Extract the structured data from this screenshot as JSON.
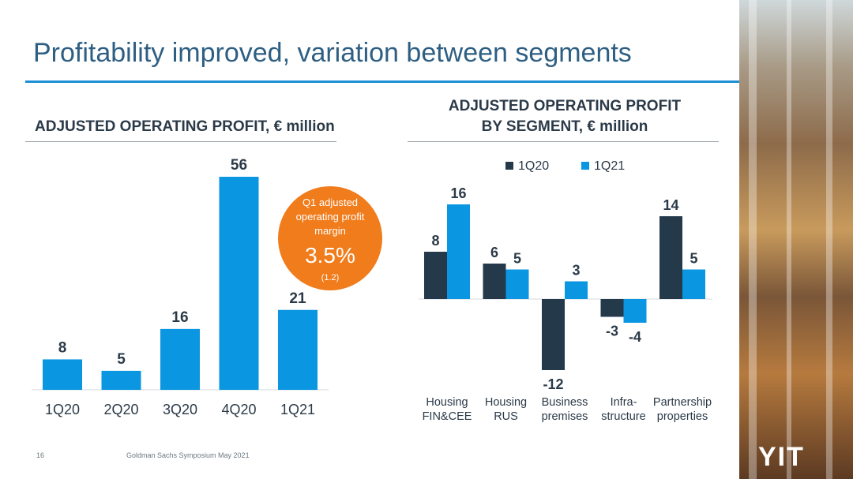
{
  "slide": {
    "title": "Profitability improved, variation between segments",
    "footer_page": "16",
    "footer_text": "Goldman Sachs Symposium May 2021",
    "logo": "YIT"
  },
  "colors": {
    "primary": "#0a96e0",
    "dark": "#243a4a",
    "accent": "#f07c1c",
    "title": "#2e5f83"
  },
  "badge": {
    "caption_line1": "Q1 adjusted",
    "caption_line2": "operating profit",
    "caption_line3": "margin",
    "value": "3.5%",
    "prior": "(1.2)"
  },
  "chart_data": [
    {
      "type": "bar",
      "title": "ADJUSTED OPERATING PROFIT, € million",
      "categories": [
        "1Q20",
        "2Q20",
        "3Q20",
        "4Q20",
        "1Q21"
      ],
      "values": [
        8,
        5,
        16,
        56,
        21
      ],
      "ylim": [
        0,
        56
      ]
    },
    {
      "type": "bar",
      "title_line1": "ADJUSTED OPERATING PROFIT",
      "title_line2": "BY SEGMENT, € million",
      "categories": [
        [
          "Housing",
          "FIN&CEE"
        ],
        [
          "Housing",
          "RUS"
        ],
        [
          "Business",
          "premises"
        ],
        [
          "Infra-",
          "structure"
        ],
        [
          "Partnership",
          "properties"
        ]
      ],
      "series": [
        {
          "name": "1Q20",
          "values": [
            8,
            6,
            -12,
            -3,
            14
          ]
        },
        {
          "name": "1Q21",
          "values": [
            16,
            5,
            3,
            -4,
            5
          ]
        }
      ],
      "legend": "top",
      "ylim": [
        -12,
        16
      ]
    }
  ]
}
